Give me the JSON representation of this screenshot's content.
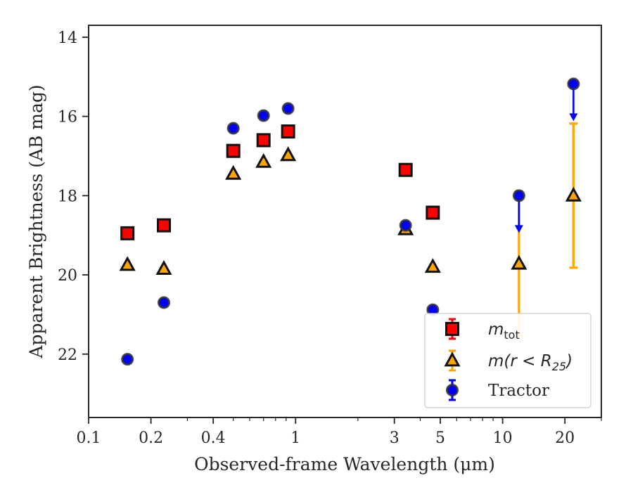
{
  "chart_data": {
    "type": "scatter",
    "xlabel": "Observed-frame Wavelength (μm)",
    "ylabel": "Apparent Brightness (AB mag)",
    "xscale": "log",
    "xlim": [
      0.1,
      30
    ],
    "ylim": [
      23.6,
      13.7
    ],
    "y_inverted": true,
    "x_ticks": [
      0.1,
      0.2,
      0.4,
      1,
      3,
      5,
      10,
      20
    ],
    "x_tick_labels": [
      "0.1",
      "0.2",
      "0.4",
      "1",
      "3",
      "5",
      "10",
      "20"
    ],
    "y_ticks": [
      14,
      16,
      18,
      20,
      22
    ],
    "y_tick_labels": [
      "14",
      "16",
      "18",
      "20",
      "22"
    ],
    "legend_position": "lower right",
    "series": [
      {
        "name": "m_tot",
        "legend_main": "m",
        "legend_sub": "tot",
        "marker": "square",
        "color": "#ff0000",
        "points": [
          {
            "x": 0.154,
            "y": 18.95
          },
          {
            "x": 0.231,
            "y": 18.75
          },
          {
            "x": 0.5,
            "y": 16.87
          },
          {
            "x": 0.7,
            "y": 16.6
          },
          {
            "x": 0.92,
            "y": 16.38
          },
          {
            "x": 3.4,
            "y": 17.35
          },
          {
            "x": 4.6,
            "y": 18.43
          }
        ]
      },
      {
        "name": "m(r < R_25)",
        "legend_main": "m(r < R",
        "legend_sub": "25",
        "legend_end": ")",
        "marker": "triangle",
        "color": "#ffa500",
        "points": [
          {
            "x": 0.154,
            "y": 19.75
          },
          {
            "x": 0.231,
            "y": 19.85
          },
          {
            "x": 0.5,
            "y": 17.45
          },
          {
            "x": 0.7,
            "y": 17.15
          },
          {
            "x": 0.92,
            "y": 16.98
          },
          {
            "x": 3.4,
            "y": 18.85
          },
          {
            "x": 4.6,
            "y": 19.8
          },
          {
            "x": 12.0,
            "y": 19.72,
            "err_lo": 1.83,
            "err_hi": 1.83
          },
          {
            "x": 22.0,
            "y": 18.0,
            "err_lo": 1.82,
            "err_hi": 1.82
          }
        ]
      },
      {
        "name": "Tractor",
        "legend_main": "Tractor",
        "marker": "circle",
        "color": "#0000ff",
        "points": [
          {
            "x": 0.154,
            "y": 22.13
          },
          {
            "x": 0.231,
            "y": 20.7
          },
          {
            "x": 0.5,
            "y": 16.3
          },
          {
            "x": 0.7,
            "y": 15.98
          },
          {
            "x": 0.92,
            "y": 15.8
          },
          {
            "x": 3.4,
            "y": 18.75
          },
          {
            "x": 4.6,
            "y": 20.88
          },
          {
            "x": 12.0,
            "y": 18.0,
            "upper_limit": true
          },
          {
            "x": 22.0,
            "y": 15.18,
            "upper_limit": true
          }
        ]
      }
    ]
  }
}
